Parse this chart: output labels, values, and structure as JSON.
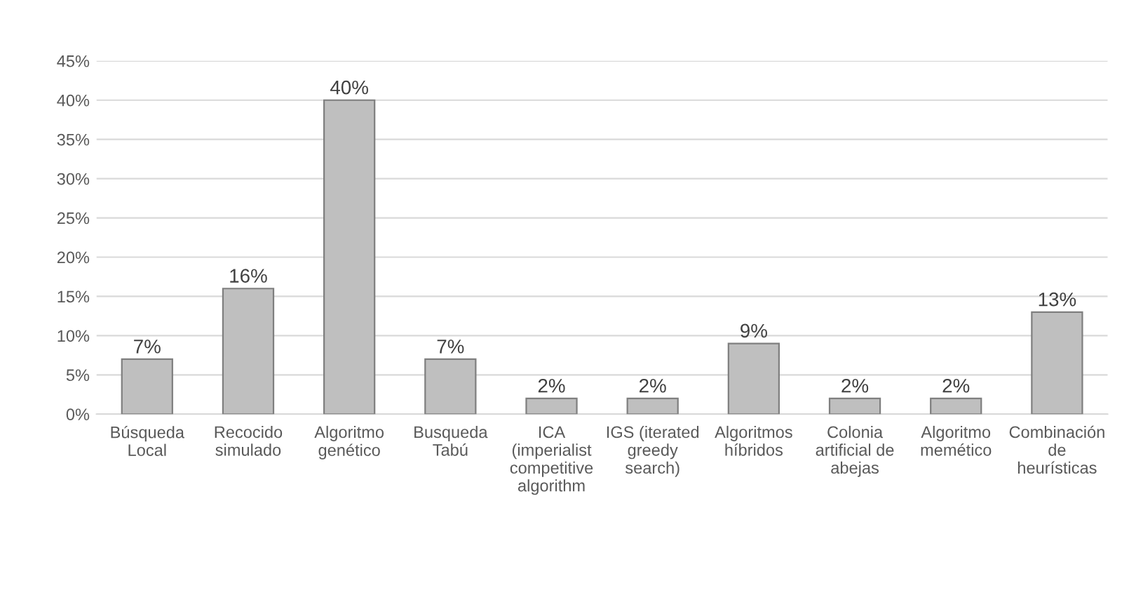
{
  "chart_data": {
    "type": "bar",
    "categories": [
      "Búsqueda\nLocal",
      "Recocido\nsimulado",
      "Algoritmo\ngenético",
      "Busqueda\nTabú",
      "ICA\n(imperialist\ncompetitive\nalgorithm",
      "IGS (iterated\ngreedy\nsearch)",
      "Algoritmos\nhíbridos",
      "Colonia\nartificial de\nabejas",
      "Algoritmo\nmemético",
      "Combinación\nde\nheurísticas"
    ],
    "values": [
      7,
      16,
      40,
      7,
      2,
      2,
      9,
      2,
      2,
      13
    ],
    "value_labels": [
      "7%",
      "16%",
      "40%",
      "7%",
      "2%",
      "2%",
      "9%",
      "2%",
      "2%",
      "13%"
    ],
    "color": "#bfbfbf",
    "ylim": [
      0,
      45
    ],
    "yticks": [
      {
        "value": 0,
        "label": "0%"
      },
      {
        "value": 5,
        "label": "5%"
      },
      {
        "value": 10,
        "label": "10%"
      },
      {
        "value": 15,
        "label": "15%"
      },
      {
        "value": 20,
        "label": "20%"
      },
      {
        "value": 25,
        "label": "25%"
      },
      {
        "value": 30,
        "label": "30%"
      },
      {
        "value": 35,
        "label": "35%"
      },
      {
        "value": 40,
        "label": "40%"
      },
      {
        "value": 45,
        "label": "45%"
      }
    ],
    "grid": "y"
  }
}
